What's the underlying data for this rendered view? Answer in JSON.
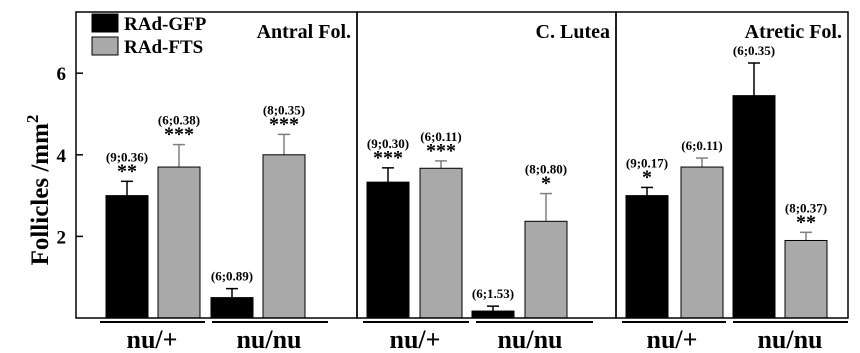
{
  "chart_data": {
    "type": "bar",
    "ylabel_text": "Follicles /mm",
    "ylabel_superscript": "2",
    "ylim": [
      0,
      7.5
    ],
    "yticks": [
      2,
      4,
      6
    ],
    "legend_position": "top-left",
    "legend": [
      {
        "name": "RAd-GFP",
        "color": "#000000"
      },
      {
        "name": "RAd-FTS",
        "color": "#a9a9a9"
      }
    ],
    "series_names": [
      "RAd-GFP",
      "RAd-FTS"
    ],
    "series_colors": [
      "#000000",
      "#a9a9a9"
    ],
    "panels": [
      {
        "title": "Antral Fol.",
        "groups": [
          {
            "label": "nu/+",
            "bars": [
              {
                "series": "RAd-GFP",
                "value": 3.0,
                "err": 0.35,
                "annot": "(9;0.36)",
                "stars": "**"
              },
              {
                "series": "RAd-FTS",
                "value": 3.7,
                "err": 0.55,
                "annot": "(6;0.38)",
                "stars": "***"
              }
            ]
          },
          {
            "label": "nu/nu",
            "bars": [
              {
                "series": "RAd-GFP",
                "value": 0.5,
                "err": 0.22,
                "annot": "(6;0.89)",
                "stars": ""
              },
              {
                "series": "RAd-FTS",
                "value": 4.0,
                "err": 0.5,
                "annot": "(8;0.35)",
                "stars": "***"
              }
            ]
          }
        ]
      },
      {
        "title": "C. Lutea",
        "groups": [
          {
            "label": "nu/+",
            "bars": [
              {
                "series": "RAd-GFP",
                "value": 3.33,
                "err": 0.35,
                "annot": "(9;0.30)",
                "stars": "***"
              },
              {
                "series": "RAd-FTS",
                "value": 3.67,
                "err": 0.18,
                "annot": "(6;0.11)",
                "stars": "***"
              }
            ]
          },
          {
            "label": "nu/nu",
            "bars": [
              {
                "series": "RAd-GFP",
                "value": 0.17,
                "err": 0.12,
                "annot": "(6;1.53)",
                "stars": ""
              },
              {
                "series": "RAd-FTS",
                "value": 2.37,
                "err": 0.68,
                "annot": "(8;0.80)",
                "stars": "*"
              }
            ]
          }
        ]
      },
      {
        "title": "Atretic Fol.",
        "groups": [
          {
            "label": "nu/+",
            "bars": [
              {
                "series": "RAd-GFP",
                "value": 3.0,
                "err": 0.2,
                "annot": "(9;0.17)",
                "stars": "*"
              },
              {
                "series": "RAd-FTS",
                "value": 3.7,
                "err": 0.22,
                "annot": "(6;0.11)",
                "stars": ""
              }
            ]
          },
          {
            "label": "nu/nu",
            "bars": [
              {
                "series": "RAd-GFP",
                "value": 5.45,
                "err": 0.8,
                "annot": "(6;0.35)",
                "stars": ""
              },
              {
                "series": "RAd-FTS",
                "value": 1.9,
                "err": 0.2,
                "annot": "(8;0.37)",
                "stars": "**"
              }
            ]
          }
        ]
      }
    ]
  }
}
